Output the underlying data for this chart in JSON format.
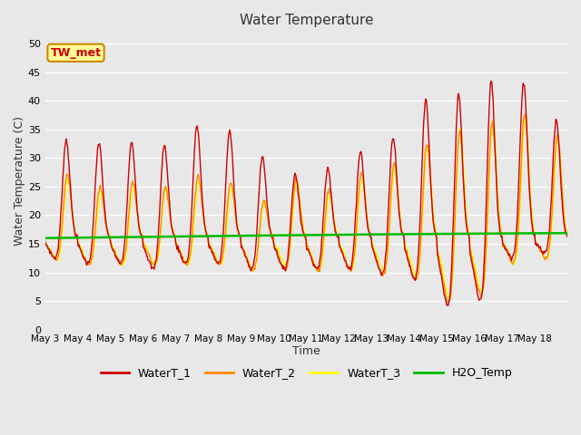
{
  "title": "Water Temperature",
  "xlabel": "Time",
  "ylabel": "Water Temperature (C)",
  "ylim": [
    0,
    52
  ],
  "yticks": [
    0,
    5,
    10,
    15,
    20,
    25,
    30,
    35,
    40,
    45,
    50
  ],
  "background_color": "#e8e8e8",
  "plot_bg_color": "#e8e8e8",
  "grid_color": "#ffffff",
  "line_colors": {
    "WaterT_1": "#cc0000",
    "WaterT_2": "#ff8800",
    "WaterT_3": "#ffff00",
    "H2O_Temp": "#00bb00"
  },
  "line_widths": {
    "WaterT_1": 1.0,
    "WaterT_2": 1.0,
    "WaterT_3": 1.0,
    "H2O_Temp": 1.8
  },
  "annotation_text": "TW_met",
  "annotation_color": "#cc0000",
  "annotation_bg": "#ffff99",
  "annotation_border": "#cc8800",
  "legend_labels": [
    "WaterT_1",
    "WaterT_2",
    "WaterT_3",
    "H2O_Temp"
  ],
  "x_tick_labels": [
    "May 3",
    "May 4",
    "May 5",
    "May 6",
    "May 7",
    "May 8",
    "May 9",
    "May 10",
    "May 11",
    "May 12",
    "May 13",
    "May 14",
    "May 15",
    "May 16",
    "May 17",
    "May 18"
  ],
  "n_days": 16,
  "points_per_day": 48,
  "figsize": [
    6.4,
    4.8
  ],
  "dpi": 100
}
